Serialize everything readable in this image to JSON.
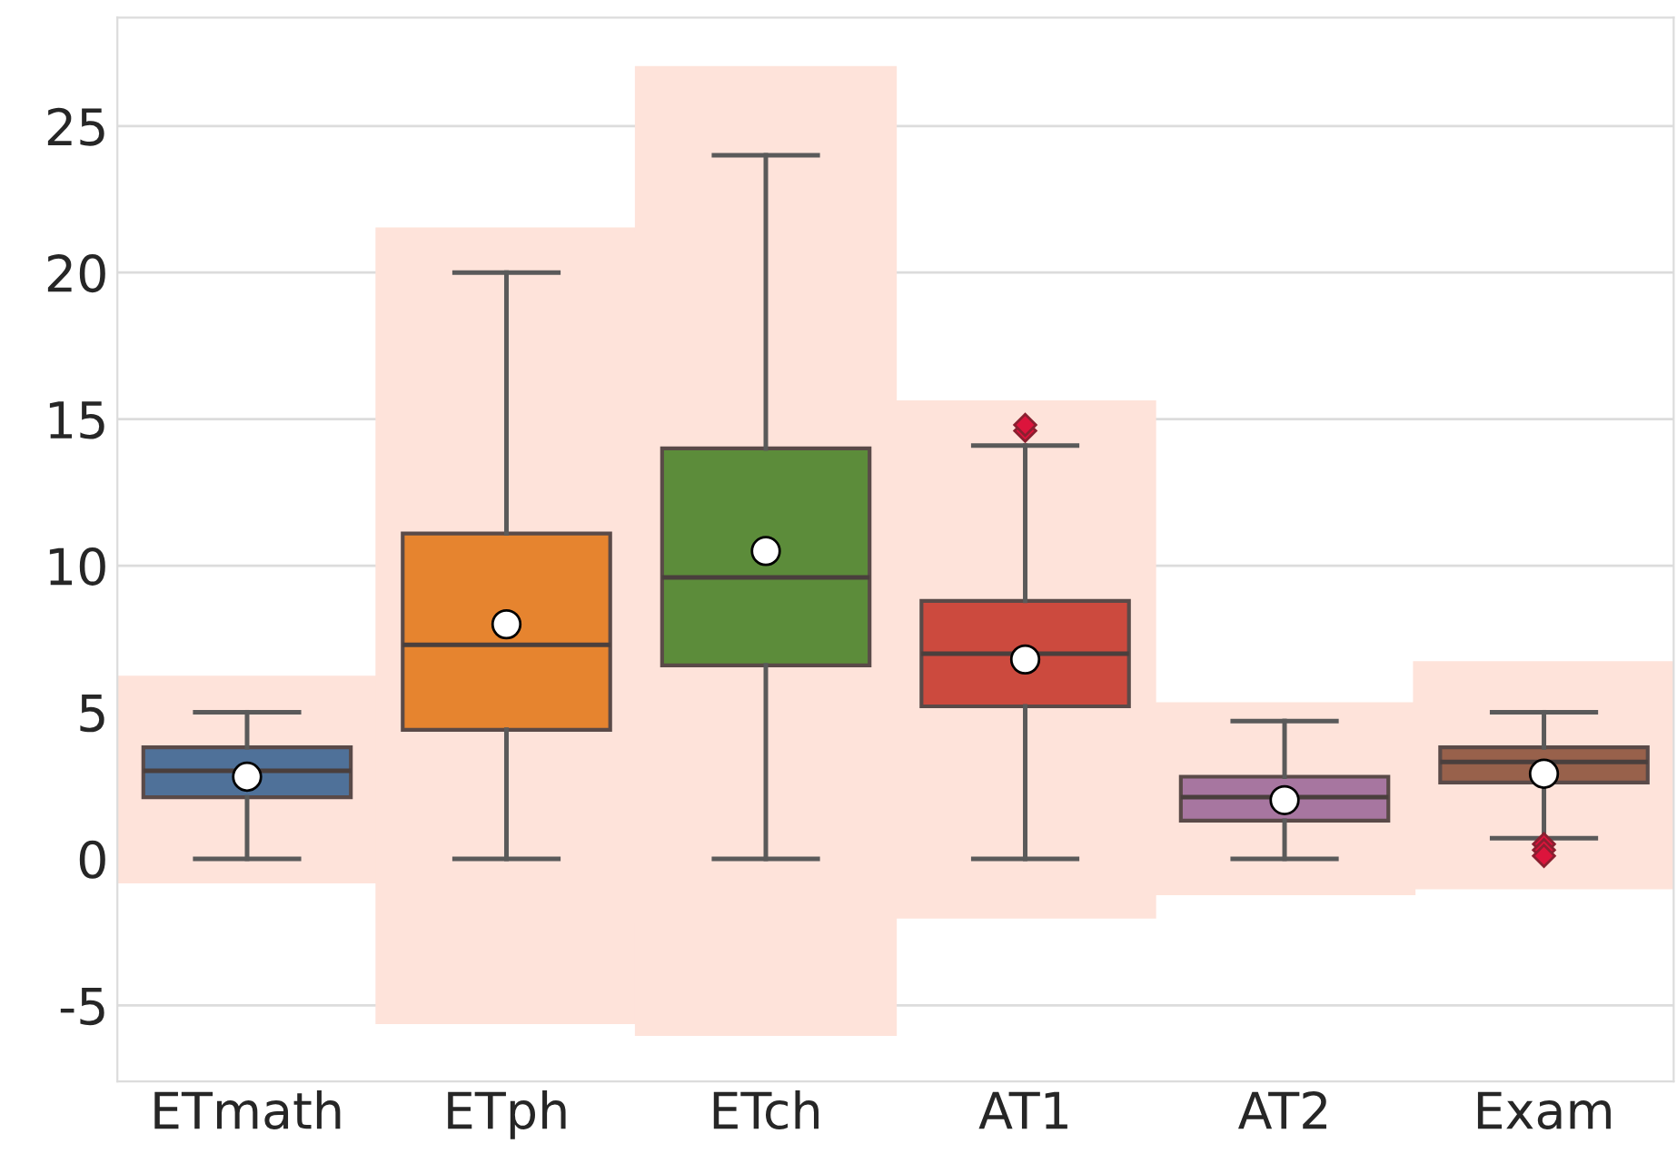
{
  "chart_data": {
    "type": "box",
    "categories": [
      "ETmath",
      "ETph",
      "ETch",
      "AT1",
      "AT2",
      "Exam"
    ],
    "series": [
      {
        "type": "bar",
        "color": "#fee3da",
        "base": [
          -0.8,
          -5.6,
          -6.0,
          -2.0,
          -1.2,
          -1.0
        ],
        "values": [
          7.0,
          27.1,
          33.0,
          17.6,
          6.5,
          7.7
        ]
      },
      {
        "colors": [
          "#4f7199",
          "#e6842f",
          "#5c8c3a",
          "#cc4a3e",
          "#a776a0",
          "#98614b"
        ],
        "boxes": [
          {
            "low": 0,
            "q1": 2.1,
            "median": 3.0,
            "q3": 3.8,
            "high": 5.0,
            "mean": 2.8
          },
          {
            "low": 0,
            "q1": 4.4,
            "median": 7.3,
            "q3": 11.1,
            "high": 20.0,
            "mean": 8.0
          },
          {
            "low": 0,
            "q1": 6.6,
            "median": 9.6,
            "q3": 14.0,
            "high": 24.0,
            "mean": 10.5
          },
          {
            "low": 0,
            "q1": 5.2,
            "median": 7.0,
            "q3": 8.8,
            "high": 14.1,
            "mean": 6.8,
            "outliers": [
              14.6,
              14.8
            ]
          },
          {
            "low": 0,
            "q1": 1.3,
            "median": 2.1,
            "q3": 2.8,
            "high": 4.7,
            "mean": 2.0
          },
          {
            "low": 0.7,
            "q1": 2.6,
            "median": 3.3,
            "q3": 3.8,
            "high": 5.0,
            "mean": 2.9,
            "outliers": [
              0.5,
              0.3,
              0.1
            ]
          }
        ]
      }
    ],
    "ylim": [
      -7.6,
      28.7
    ],
    "yticks": [
      -5,
      0,
      5,
      10,
      15,
      20,
      25
    ],
    "grid": "y",
    "legend": false
  }
}
